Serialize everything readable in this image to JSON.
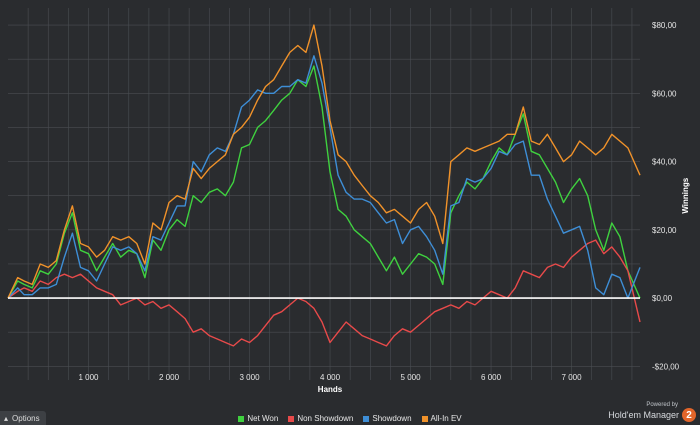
{
  "chart_data": {
    "type": "line",
    "xlabel": "Hands",
    "ylabel": "Winnings",
    "xlim": [
      0,
      7850
    ],
    "ylim": [
      -24,
      85
    ],
    "x_ticks": [
      {
        "value": 1000,
        "label": "1 000"
      },
      {
        "value": 2000,
        "label": "2 000"
      },
      {
        "value": 3000,
        "label": "3 000"
      },
      {
        "value": 4000,
        "label": "4 000"
      },
      {
        "value": 5000,
        "label": "5 000"
      },
      {
        "value": 6000,
        "label": "6 000"
      },
      {
        "value": 7000,
        "label": "7 000"
      }
    ],
    "y_ticks": [
      {
        "value": 80,
        "label": "$80,00"
      },
      {
        "value": 60,
        "label": "$60,00"
      },
      {
        "value": 40,
        "label": "$40,00"
      },
      {
        "value": 20,
        "label": "$20,00"
      },
      {
        "value": 0,
        "label": "$0,00"
      },
      {
        "value": -20,
        "label": "-$20,00"
      }
    ],
    "grid": true,
    "legend_position": "bottom",
    "zero_line_color": "#ffffff",
    "series": [
      {
        "name": "Net Won",
        "color": "#3fd13f",
        "x": [
          0,
          120,
          200,
          300,
          400,
          500,
          600,
          700,
          800,
          900,
          1000,
          1100,
          1200,
          1300,
          1400,
          1500,
          1600,
          1700,
          1800,
          1900,
          2000,
          2100,
          2200,
          2300,
          2400,
          2500,
          2600,
          2700,
          2800,
          2900,
          3000,
          3100,
          3200,
          3300,
          3400,
          3500,
          3600,
          3700,
          3800,
          3900,
          4000,
          4100,
          4200,
          4300,
          4400,
          4500,
          4600,
          4700,
          4800,
          4900,
          5000,
          5100,
          5200,
          5300,
          5400,
          5500,
          5600,
          5700,
          5800,
          5900,
          6000,
          6100,
          6200,
          6300,
          6400,
          6500,
          6600,
          6700,
          6800,
          6900,
          7000,
          7100,
          7200,
          7300,
          7400,
          7500,
          7600,
          7700,
          7850
        ],
        "y": [
          0,
          5,
          4,
          3,
          8,
          7,
          10,
          19,
          25,
          14,
          13,
          8,
          12,
          16,
          12,
          14,
          13,
          6,
          17,
          14,
          20,
          23,
          21,
          30,
          28,
          31,
          32,
          30,
          34,
          44,
          45,
          50,
          52,
          55,
          58,
          60,
          64,
          62,
          68,
          56,
          37,
          26,
          24,
          20,
          18,
          16,
          12,
          8,
          12,
          7,
          10,
          13,
          12,
          10,
          4,
          25,
          30,
          34,
          32,
          35,
          40,
          44,
          42,
          48,
          54,
          43,
          42,
          38,
          34,
          28,
          32,
          35,
          30,
          20,
          14,
          22,
          18,
          8,
          0
        ]
      },
      {
        "name": "Non Showdown",
        "color": "#e84a4a",
        "x": [
          0,
          120,
          200,
          300,
          400,
          500,
          600,
          700,
          800,
          900,
          1000,
          1100,
          1200,
          1300,
          1400,
          1500,
          1600,
          1700,
          1800,
          1900,
          2000,
          2100,
          2200,
          2300,
          2400,
          2500,
          2600,
          2700,
          2800,
          2900,
          3000,
          3100,
          3200,
          3300,
          3400,
          3500,
          3600,
          3700,
          3800,
          3900,
          4000,
          4100,
          4200,
          4300,
          4400,
          4500,
          4600,
          4700,
          4800,
          4900,
          5000,
          5100,
          5200,
          5300,
          5400,
          5500,
          5600,
          5700,
          5800,
          5900,
          6000,
          6100,
          6200,
          6300,
          6400,
          6500,
          6600,
          6700,
          6800,
          6900,
          7000,
          7100,
          7200,
          7300,
          7400,
          7500,
          7600,
          7700,
          7850
        ],
        "y": [
          0,
          2,
          3,
          2,
          5,
          4,
          6,
          7,
          6,
          7,
          5,
          3,
          2,
          1,
          -2,
          -1,
          0,
          -2,
          -1,
          -3,
          -2,
          -4,
          -6,
          -10,
          -9,
          -11,
          -12,
          -13,
          -14,
          -12,
          -13,
          -11,
          -8,
          -5,
          -4,
          -2,
          0,
          -1,
          -3,
          -7,
          -13,
          -10,
          -7,
          -9,
          -11,
          -12,
          -13,
          -14,
          -11,
          -9,
          -10,
          -8,
          -6,
          -4,
          -3,
          -2,
          -3,
          -1,
          -2,
          0,
          2,
          1,
          0,
          3,
          8,
          7,
          6,
          9,
          10,
          9,
          12,
          14,
          16,
          17,
          13,
          15,
          12,
          8,
          -7
        ]
      },
      {
        "name": "Showdown",
        "color": "#3e8ed6",
        "x": [
          0,
          120,
          200,
          300,
          400,
          500,
          600,
          700,
          800,
          900,
          1000,
          1100,
          1200,
          1300,
          1400,
          1500,
          1600,
          1700,
          1800,
          1900,
          2000,
          2100,
          2200,
          2300,
          2400,
          2500,
          2600,
          2700,
          2800,
          2900,
          3000,
          3100,
          3200,
          3300,
          3400,
          3500,
          3600,
          3700,
          3800,
          3900,
          4000,
          4100,
          4200,
          4300,
          4400,
          4500,
          4600,
          4700,
          4800,
          4900,
          5000,
          5100,
          5200,
          5300,
          5400,
          5500,
          5600,
          5700,
          5800,
          5900,
          6000,
          6100,
          6200,
          6300,
          6400,
          6500,
          6600,
          6700,
          6800,
          6900,
          7000,
          7100,
          7200,
          7300,
          7400,
          7500,
          7600,
          7700,
          7850
        ],
        "y": [
          0,
          3,
          1,
          1,
          3,
          3,
          4,
          12,
          19,
          9,
          8,
          5,
          10,
          15,
          14,
          15,
          13,
          8,
          18,
          17,
          22,
          27,
          27,
          40,
          37,
          42,
          44,
          43,
          48,
          56,
          58,
          61,
          60,
          60,
          62,
          62,
          64,
          63,
          71,
          63,
          50,
          36,
          31,
          29,
          29,
          28,
          25,
          22,
          23,
          16,
          20,
          21,
          18,
          14,
          7,
          27,
          28,
          35,
          34,
          35,
          38,
          43,
          42,
          45,
          46,
          36,
          36,
          29,
          24,
          19,
          20,
          21,
          14,
          3,
          1,
          7,
          6,
          0,
          9
        ]
      },
      {
        "name": "All-In EV",
        "color": "#f0922a",
        "x": [
          0,
          120,
          200,
          300,
          400,
          500,
          600,
          700,
          800,
          900,
          1000,
          1100,
          1200,
          1300,
          1400,
          1500,
          1600,
          1700,
          1800,
          1900,
          2000,
          2100,
          2200,
          2300,
          2400,
          2500,
          2600,
          2700,
          2800,
          2900,
          3000,
          3100,
          3200,
          3300,
          3400,
          3500,
          3600,
          3700,
          3800,
          3900,
          4000,
          4100,
          4200,
          4300,
          4400,
          4500,
          4600,
          4700,
          4800,
          4900,
          5000,
          5100,
          5200,
          5300,
          5400,
          5500,
          5600,
          5700,
          5800,
          5900,
          6000,
          6100,
          6200,
          6300,
          6400,
          6500,
          6600,
          6700,
          6800,
          6900,
          7000,
          7100,
          7200,
          7300,
          7400,
          7500,
          7600,
          7700,
          7850
        ],
        "y": [
          0,
          6,
          5,
          4,
          10,
          9,
          11,
          20,
          27,
          16,
          15,
          12,
          14,
          18,
          17,
          18,
          16,
          10,
          22,
          20,
          28,
          30,
          29,
          38,
          35,
          38,
          40,
          42,
          48,
          50,
          53,
          58,
          62,
          64,
          68,
          72,
          74,
          72,
          80,
          68,
          52,
          42,
          40,
          36,
          33,
          30,
          28,
          25,
          26,
          24,
          22,
          26,
          28,
          24,
          16,
          40,
          42,
          44,
          43,
          44,
          45,
          46,
          48,
          48,
          56,
          46,
          45,
          48,
          44,
          40,
          42,
          46,
          44,
          42,
          44,
          48,
          46,
          44,
          36
        ]
      }
    ]
  },
  "ui": {
    "options_label": "Options",
    "options_icon": "caret-up-icon",
    "powered_by": "Powered by",
    "brand_name": "Hold'em Manager",
    "brand_badge": "2",
    "brand_color": "#e2652a",
    "background_color": "#2a2c2f",
    "grid_color": "#4a4d52"
  }
}
